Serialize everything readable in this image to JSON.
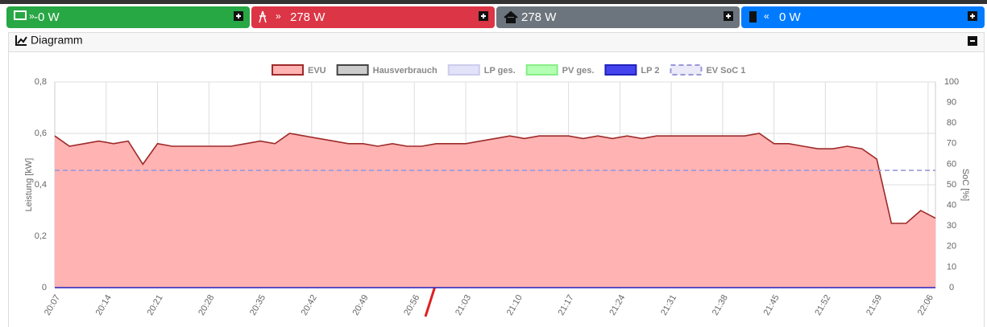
{
  "header": {
    "buttons": [
      {
        "text": "-0 W"
      },
      {
        "text": "278 W"
      },
      {
        "text": "278 W"
      },
      {
        "text": "0 W"
      }
    ]
  },
  "card": {
    "title": "Diagramm"
  },
  "chart_data": {
    "type": "line",
    "x": [
      "20:07",
      "20:09",
      "20:11",
      "20:13",
      "20:15",
      "20:17",
      "20:19",
      "20:21",
      "20:23",
      "20:25",
      "20:27",
      "20:29",
      "20:31",
      "20:33",
      "20:35",
      "20:37",
      "20:39",
      "20:41",
      "20:43",
      "20:45",
      "20:47",
      "20:49",
      "20:51",
      "20:53",
      "20:55",
      "20:57",
      "20:59",
      "21:01",
      "21:03",
      "21:05",
      "21:07",
      "21:09",
      "21:11",
      "21:13",
      "21:15",
      "21:17",
      "21:19",
      "21:21",
      "21:23",
      "21:25",
      "21:27",
      "21:29",
      "21:31",
      "21:33",
      "21:35",
      "21:37",
      "21:39",
      "21:41",
      "21:43",
      "21:45",
      "21:47",
      "21:49",
      "21:51",
      "21:53",
      "21:55",
      "21:57",
      "21:59",
      "22:01",
      "22:03",
      "22:05",
      "22:07"
    ],
    "xlim": [
      "20:07",
      "22:07"
    ],
    "xticks": [
      "20:07",
      "20:14",
      "20:21",
      "20:28",
      "20:35",
      "20:42",
      "20:49",
      "20:56",
      "21:03",
      "21:10",
      "21:17",
      "21:24",
      "21:31",
      "21:38",
      "21:45",
      "21:52",
      "21:59",
      "22:06"
    ],
    "ylim": [
      0,
      0.8
    ],
    "yticks": [
      0,
      {
        "value": 0.2,
        "label": "0,2"
      },
      {
        "value": 0.4,
        "label": "0,4"
      },
      {
        "value": 0.6,
        "label": "0,6"
      },
      {
        "value": 0.8,
        "label": "0,8"
      }
    ],
    "y2lim": [
      0,
      100
    ],
    "y2ticks": [
      0,
      10,
      20,
      30,
      40,
      50,
      60,
      70,
      80,
      90,
      100
    ],
    "ylabel": "Leistung [kW]",
    "y2label": "SoC [%]",
    "grid": true,
    "series": [
      {
        "name": "EVU",
        "color": "#ffb3b3",
        "border": "#9e2a2a",
        "fill": true,
        "values": [
          0.59,
          0.55,
          0.56,
          0.57,
          0.56,
          0.57,
          0.48,
          0.56,
          0.55,
          0.55,
          0.55,
          0.55,
          0.55,
          0.56,
          0.57,
          0.56,
          0.6,
          0.59,
          0.58,
          0.57,
          0.56,
          0.56,
          0.55,
          0.56,
          0.55,
          0.55,
          0.56,
          0.56,
          0.56,
          0.57,
          0.58,
          0.59,
          0.58,
          0.59,
          0.59,
          0.59,
          0.58,
          0.59,
          0.58,
          0.59,
          0.58,
          0.59,
          0.59,
          0.59,
          0.59,
          0.59,
          0.59,
          0.59,
          0.6,
          0.56,
          0.56,
          0.55,
          0.54,
          0.54,
          0.55,
          0.54,
          0.5,
          0.25,
          0.25,
          0.3,
          0.27
        ]
      },
      {
        "name": "Hausverbrauch",
        "color": "#cccccc",
        "border": "#444444"
      },
      {
        "name": "LP ges.",
        "color": "#e2e2f8",
        "border": "#ccccee"
      },
      {
        "name": "PV ges.",
        "color": "#b3ffb3",
        "border": "#88ee88"
      },
      {
        "name": "LP 2",
        "color": "#4444ee",
        "border": "#2222bb",
        "values": [
          0,
          0,
          0,
          0,
          0,
          0,
          0,
          0,
          0,
          0,
          0,
          0,
          0,
          0,
          0,
          0,
          0,
          0,
          0,
          0,
          0,
          0,
          0,
          0,
          0,
          0,
          0,
          0,
          0,
          0,
          0,
          0,
          0,
          0,
          0,
          0,
          0,
          0,
          0,
          0,
          0,
          0,
          0,
          0,
          0,
          0,
          0,
          0,
          0,
          0,
          0,
          0,
          0,
          0,
          0,
          0,
          0,
          0,
          0,
          0,
          0
        ]
      },
      {
        "name": "EV SoC 1",
        "color": "#eaeaf8",
        "border": "#9999dd",
        "dashed": true,
        "axis": "y2",
        "values": [
          57,
          57,
          57,
          57,
          57,
          57,
          57,
          57,
          57,
          57,
          57,
          57,
          57,
          57,
          57,
          57,
          57,
          57,
          57,
          57,
          57,
          57,
          57,
          57,
          57,
          57,
          57,
          57,
          57,
          57,
          57,
          57,
          57,
          57,
          57,
          57,
          57,
          57,
          57,
          57,
          57,
          57,
          57,
          57,
          57,
          57,
          57,
          57,
          57,
          57,
          57,
          57,
          57,
          57,
          57,
          57,
          57,
          57,
          57,
          57,
          57
        ]
      }
    ]
  }
}
